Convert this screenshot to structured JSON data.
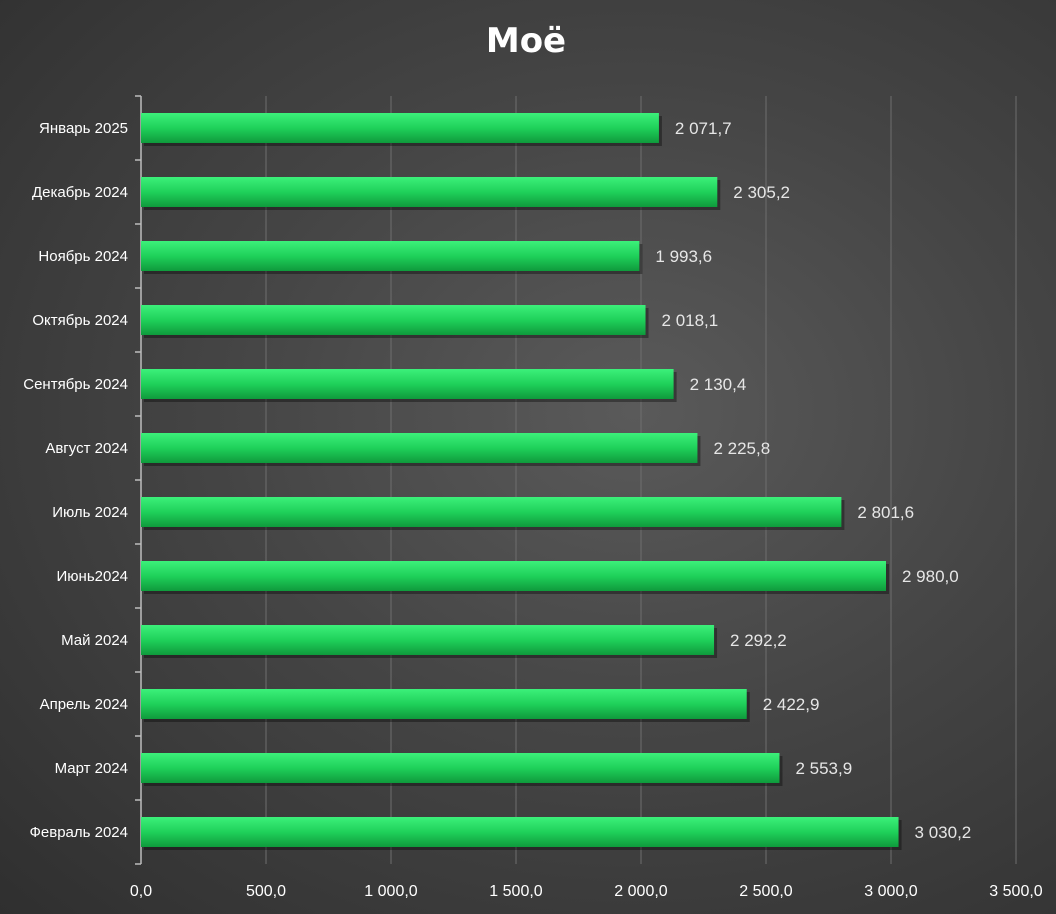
{
  "chart_data": {
    "type": "bar",
    "orientation": "horizontal",
    "title": "Моё",
    "categories": [
      "Январь 2025",
      "Декабрь 2024",
      "Ноябрь 2024",
      "Октябрь 2024",
      "Сентябрь 2024",
      "Август 2024",
      "Июль 2024",
      "Июнь2024",
      "Май 2024",
      "Апрель 2024",
      "Март 2024",
      "Февраль 2024"
    ],
    "values": [
      2071.7,
      2305.2,
      1993.6,
      2018.1,
      2130.4,
      2225.8,
      2801.6,
      2980.0,
      2292.2,
      2422.9,
      2553.9,
      3030.2
    ],
    "data_labels": [
      "2 071,7",
      "2 305,2",
      "1 993,6",
      "2 018,1",
      "2 130,4",
      "2 225,8",
      "2 801,6",
      "2 980,0",
      "2 292,2",
      "2 422,9",
      "2 553,9",
      "3 030,2"
    ],
    "x_ticks": [
      0,
      500,
      1000,
      1500,
      2000,
      2500,
      3000,
      3500
    ],
    "x_tick_labels": [
      "0,0",
      "500,0",
      "1 000,0",
      "1 500,0",
      "2 000,0",
      "2 500,0",
      "3 000,0",
      "3 500,0"
    ],
    "xlim": [
      0,
      3500
    ],
    "grid": "vertical",
    "legend": "none",
    "bar_color": "#1fd15a",
    "background_color": "#444444",
    "text_color": "#ffffff"
  }
}
